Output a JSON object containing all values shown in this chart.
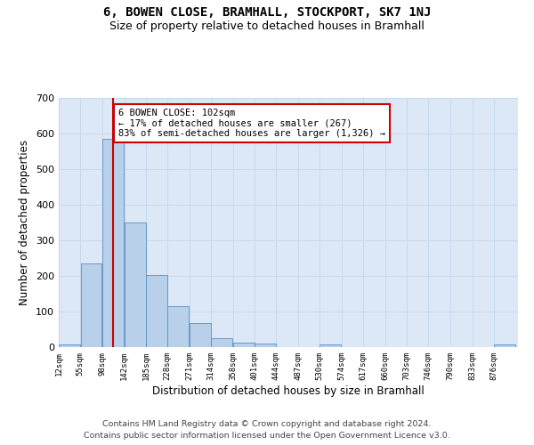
{
  "title": "6, BOWEN CLOSE, BRAMHALL, STOCKPORT, SK7 1NJ",
  "subtitle": "Size of property relative to detached houses in Bramhall",
  "xlabel": "Distribution of detached houses by size in Bramhall",
  "ylabel": "Number of detached properties",
  "bin_labels": [
    "12sqm",
    "55sqm",
    "98sqm",
    "142sqm",
    "185sqm",
    "228sqm",
    "271sqm",
    "314sqm",
    "358sqm",
    "401sqm",
    "444sqm",
    "487sqm",
    "530sqm",
    "574sqm",
    "617sqm",
    "660sqm",
    "703sqm",
    "746sqm",
    "790sqm",
    "833sqm",
    "876sqm"
  ],
  "bar_heights": [
    8,
    235,
    585,
    350,
    203,
    115,
    68,
    25,
    13,
    10,
    0,
    0,
    7,
    0,
    0,
    0,
    0,
    0,
    0,
    0,
    8
  ],
  "bar_color": "#b8d0ea",
  "bar_edge_color": "#5a8fc4",
  "annotation_line1": "6 BOWEN CLOSE: 102sqm",
  "annotation_line2": "← 17% of detached houses are smaller (267)",
  "annotation_line3": "83% of semi-detached houses are larger (1,326) →",
  "annotation_box_color": "#ffffff",
  "annotation_box_edge": "#cc0000",
  "ylim_max": 700,
  "yticks": [
    0,
    100,
    200,
    300,
    400,
    500,
    600,
    700
  ],
  "grid_color": "#c8d8ec",
  "bg_color": "#dce8f5",
  "footer_line1": "Contains HM Land Registry data © Crown copyright and database right 2024.",
  "footer_line2": "Contains public sector information licensed under the Open Government Licence v3.0.",
  "red_line_color": "#cc0000",
  "bin_starts": [
    12,
    55,
    98,
    142,
    185,
    228,
    271,
    314,
    358,
    401,
    444,
    487,
    530,
    574,
    617,
    660,
    703,
    746,
    790,
    833,
    876
  ],
  "bin_width": 43
}
